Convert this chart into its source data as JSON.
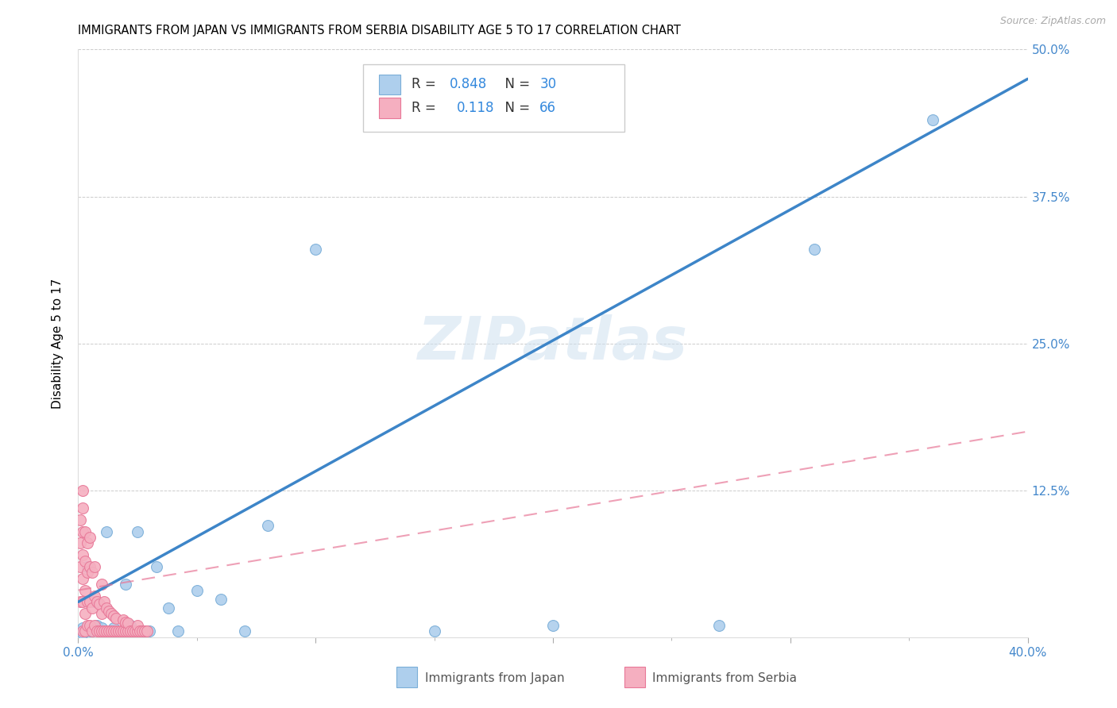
{
  "title": "IMMIGRANTS FROM JAPAN VS IMMIGRANTS FROM SERBIA DISABILITY AGE 5 TO 17 CORRELATION CHART",
  "source": "Source: ZipAtlas.com",
  "ylabel": "Disability Age 5 to 17",
  "xlim": [
    0.0,
    0.4
  ],
  "ylim": [
    0.0,
    0.5
  ],
  "xticks": [
    0.0,
    0.1,
    0.2,
    0.3,
    0.4
  ],
  "yticks": [
    0.0,
    0.125,
    0.25,
    0.375,
    0.5
  ],
  "xticklabels": [
    "0.0%",
    "",
    "",
    "",
    "40.0%"
  ],
  "yticklabels": [
    "",
    "12.5%",
    "25.0%",
    "37.5%",
    "50.0%"
  ],
  "watermark": "ZIPatlas",
  "japan_color": "#aecfed",
  "serbia_color": "#f5afc0",
  "japan_edge_color": "#7aaed8",
  "serbia_edge_color": "#e87898",
  "japan_line_color": "#3d85c8",
  "serbia_line_color": "#e87898",
  "japan_R": 0.848,
  "japan_N": 30,
  "serbia_R": 0.118,
  "serbia_N": 66,
  "japan_line_x": [
    0.0,
    0.4
  ],
  "japan_line_y": [
    0.03,
    0.475
  ],
  "serbia_line_x": [
    0.0,
    0.4
  ],
  "serbia_line_y": [
    0.04,
    0.175
  ],
  "japan_scatter_x": [
    0.001,
    0.002,
    0.002,
    0.003,
    0.004,
    0.005,
    0.006,
    0.007,
    0.008,
    0.01,
    0.012,
    0.015,
    0.02,
    0.022,
    0.025,
    0.028,
    0.03,
    0.033,
    0.038,
    0.042,
    0.05,
    0.06,
    0.07,
    0.08,
    0.1,
    0.15,
    0.2,
    0.27,
    0.31,
    0.36
  ],
  "japan_scatter_y": [
    0.005,
    0.003,
    0.008,
    0.005,
    0.06,
    0.005,
    0.005,
    0.03,
    0.01,
    0.008,
    0.09,
    0.008,
    0.045,
    0.01,
    0.09,
    0.005,
    0.005,
    0.06,
    0.025,
    0.005,
    0.04,
    0.032,
    0.005,
    0.095,
    0.33,
    0.005,
    0.01,
    0.01,
    0.33,
    0.44
  ],
  "serbia_scatter_x": [
    0.001,
    0.001,
    0.001,
    0.001,
    0.002,
    0.002,
    0.002,
    0.002,
    0.002,
    0.002,
    0.002,
    0.003,
    0.003,
    0.003,
    0.003,
    0.003,
    0.004,
    0.004,
    0.004,
    0.004,
    0.005,
    0.005,
    0.005,
    0.005,
    0.006,
    0.006,
    0.006,
    0.007,
    0.007,
    0.007,
    0.008,
    0.008,
    0.009,
    0.009,
    0.01,
    0.01,
    0.01,
    0.011,
    0.011,
    0.012,
    0.012,
    0.013,
    0.013,
    0.014,
    0.014,
    0.015,
    0.015,
    0.016,
    0.016,
    0.017,
    0.018,
    0.019,
    0.019,
    0.02,
    0.02,
    0.021,
    0.021,
    0.022,
    0.023,
    0.024,
    0.025,
    0.025,
    0.026,
    0.027,
    0.028,
    0.029
  ],
  "serbia_scatter_y": [
    0.03,
    0.06,
    0.08,
    0.1,
    0.005,
    0.03,
    0.05,
    0.07,
    0.09,
    0.11,
    0.125,
    0.005,
    0.02,
    0.04,
    0.065,
    0.09,
    0.01,
    0.03,
    0.055,
    0.08,
    0.01,
    0.03,
    0.06,
    0.085,
    0.005,
    0.025,
    0.055,
    0.01,
    0.035,
    0.06,
    0.005,
    0.03,
    0.005,
    0.028,
    0.005,
    0.02,
    0.045,
    0.005,
    0.03,
    0.005,
    0.025,
    0.005,
    0.022,
    0.005,
    0.02,
    0.005,
    0.018,
    0.005,
    0.016,
    0.005,
    0.005,
    0.005,
    0.015,
    0.005,
    0.013,
    0.005,
    0.012,
    0.005,
    0.005,
    0.005,
    0.005,
    0.01,
    0.005,
    0.005,
    0.005,
    0.005
  ]
}
